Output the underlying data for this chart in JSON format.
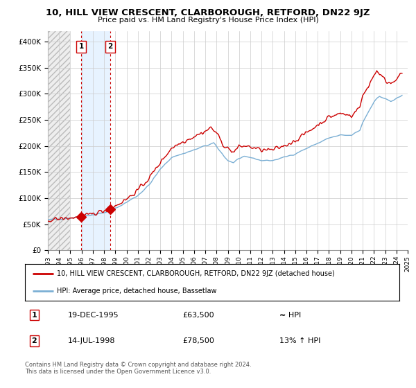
{
  "title": "10, HILL VIEW CRESCENT, CLARBOROUGH, RETFORD, DN22 9JZ",
  "subtitle": "Price paid vs. HM Land Registry's House Price Index (HPI)",
  "ylim": [
    0,
    420000
  ],
  "yticks": [
    0,
    50000,
    100000,
    150000,
    200000,
    250000,
    300000,
    350000,
    400000
  ],
  "ytick_labels": [
    "£0",
    "£50K",
    "£100K",
    "£150K",
    "£200K",
    "£250K",
    "£300K",
    "£350K",
    "£400K"
  ],
  "hpi_color": "#7bafd4",
  "price_color": "#cc0000",
  "marker_color": "#cc0000",
  "sale1_date": "19-DEC-1995",
  "sale1_price": 63500,
  "sale1_label": "≈ HPI",
  "sale2_date": "14-JUL-1998",
  "sale2_price": 78500,
  "sale2_label": "13% ↑ HPI",
  "sale1_x": 1995.97,
  "sale2_x": 1998.54,
  "legend_line1": "10, HILL VIEW CRESCENT, CLARBOROUGH, RETFORD, DN22 9JZ (detached house)",
  "legend_line2": "HPI: Average price, detached house, Bassetlaw",
  "copyright": "Contains HM Land Registry data © Crown copyright and database right 2024.\nThis data is licensed under the Open Government Licence v3.0.",
  "grid_color": "#cccccc",
  "vline1_x": 1995.97,
  "vline2_x": 1998.54,
  "hatch_end_x": 1995.0,
  "shaded_band_color": "#ddeeff",
  "xtick_years": [
    1993,
    1994,
    1995,
    1996,
    1997,
    1998,
    1999,
    2000,
    2001,
    2002,
    2003,
    2004,
    2005,
    2006,
    2007,
    2008,
    2009,
    2010,
    2011,
    2012,
    2013,
    2014,
    2015,
    2016,
    2017,
    2018,
    2019,
    2020,
    2021,
    2022,
    2023,
    2024,
    2025
  ]
}
